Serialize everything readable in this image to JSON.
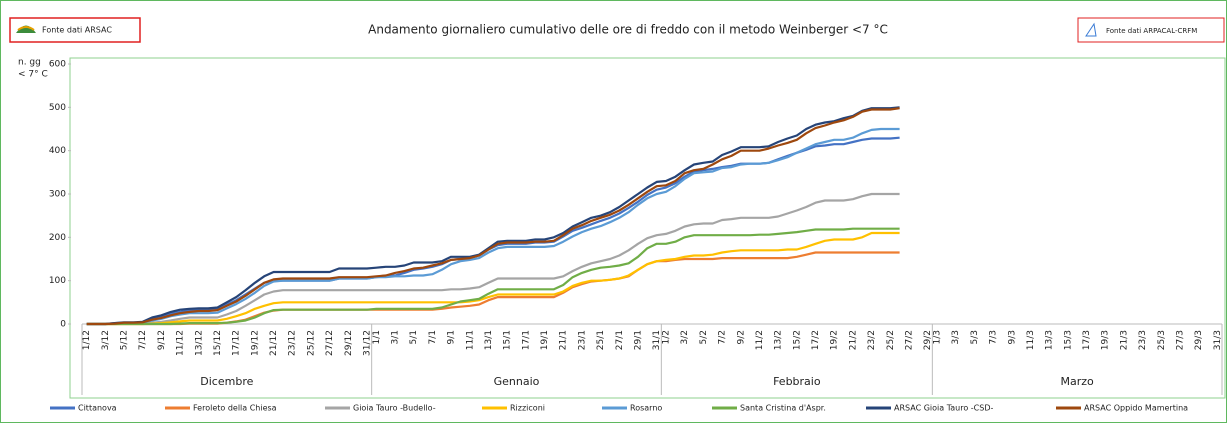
{
  "header": {
    "left_source": "Fonte dati ARSAC",
    "right_source": "Fonte dati ARPACAL-CRFM"
  },
  "chart_data": {
    "type": "line",
    "title": "Andamento giornaliero cumulativo delle ore di freddo con il metodo Weinberger <7 °C",
    "y_label": [
      "n. gg",
      "< 7° C"
    ],
    "ylim": [
      0,
      600
    ],
    "yticks": [
      0,
      100,
      200,
      300,
      400,
      500,
      600
    ],
    "grid": false,
    "groups": [
      "Dicembre",
      "Gennaio",
      "Febbraio",
      "Marzo"
    ],
    "categories": [
      "1/12",
      null,
      "3/12",
      null,
      "5/12",
      null,
      "7/12",
      null,
      "9/12",
      null,
      "11/12",
      null,
      "13/12",
      null,
      "15/12",
      null,
      "17/12",
      null,
      "19/12",
      null,
      "21/12",
      null,
      "23/12",
      null,
      "25/12",
      null,
      "27/12",
      null,
      "29/12",
      null,
      "31/12",
      "1/1",
      null,
      "3/1",
      null,
      "5/1",
      null,
      "7/1",
      null,
      "9/1",
      null,
      "11/1",
      null,
      "13/1",
      null,
      "15/1",
      null,
      "17/1",
      null,
      "19/1",
      null,
      "21/1",
      null,
      "23/1",
      null,
      "25/1",
      null,
      "27/1",
      null,
      "29/1",
      null,
      "31/1",
      "1/2",
      null,
      "3/2",
      null,
      "5/2",
      null,
      "7/2",
      null,
      "9/2",
      null,
      "11/2",
      null,
      "13/2",
      null,
      "15/2",
      null,
      "17/2",
      null,
      "19/2",
      null,
      "21/2",
      null,
      "23/2",
      null,
      "25/2",
      null,
      "27/2",
      null,
      "29/2",
      "1/3",
      null,
      "3/3",
      null,
      "5/3",
      null,
      "7/3",
      null,
      "9/3",
      null,
      "11/3",
      null,
      "13/3",
      null,
      "15/3",
      null,
      "17/3",
      null,
      "19/3",
      null,
      "21/3",
      null,
      "23/3",
      null,
      "25/3",
      null,
      "27/3",
      null,
      "29/3",
      null,
      "31/3"
    ],
    "series": [
      {
        "name": "Cittanova",
        "color": "#4472c4",
        "values": [
          0,
          0,
          0,
          2,
          3,
          3,
          4,
          12,
          18,
          24,
          28,
          32,
          33,
          33,
          34,
          45,
          55,
          68,
          82,
          95,
          100,
          100,
          100,
          100,
          100,
          100,
          100,
          105,
          105,
          105,
          105,
          108,
          110,
          112,
          118,
          125,
          128,
          132,
          138,
          148,
          150,
          152,
          158,
          172,
          182,
          185,
          185,
          185,
          188,
          188,
          190,
          202,
          215,
          222,
          230,
          238,
          245,
          255,
          268,
          282,
          298,
          310,
          315,
          325,
          340,
          352,
          355,
          358,
          362,
          365,
          370,
          370,
          370,
          372,
          380,
          388,
          395,
          402,
          410,
          412,
          415,
          415,
          420,
          425,
          428,
          428,
          428,
          430,
          null,
          null,
          null,
          null,
          null,
          null,
          null,
          null,
          null,
          null,
          null,
          null,
          null,
          null,
          null,
          null,
          null,
          null,
          null,
          null,
          null,
          null,
          null,
          null,
          null,
          null,
          null,
          null,
          null,
          null,
          null,
          null,
          null,
          null
        ]
      },
      {
        "name": "Feroleto della Chiesa",
        "color": "#ed7d31",
        "values": [
          0,
          0,
          0,
          0,
          0,
          0,
          0,
          0,
          0,
          0,
          0,
          1,
          1,
          1,
          1,
          3,
          6,
          10,
          18,
          26,
          31,
          33,
          33,
          33,
          33,
          33,
          33,
          33,
          33,
          33,
          33,
          33,
          33,
          33,
          33,
          33,
          33,
          33,
          35,
          38,
          40,
          42,
          45,
          55,
          62,
          62,
          62,
          62,
          62,
          62,
          62,
          72,
          85,
          92,
          98,
          100,
          102,
          105,
          110,
          125,
          138,
          145,
          145,
          148,
          150,
          150,
          150,
          150,
          152,
          152,
          152,
          152,
          152,
          152,
          152,
          152,
          155,
          160,
          165,
          165,
          165,
          165,
          165,
          165,
          165,
          165,
          165,
          165,
          null,
          null,
          null,
          null,
          null,
          null,
          null,
          null,
          null,
          null,
          null,
          null,
          null,
          null,
          null,
          null,
          null,
          null,
          null,
          null,
          null,
          null,
          null,
          null,
          null,
          null,
          null,
          null,
          null,
          null,
          null,
          null,
          null,
          null
        ]
      },
      {
        "name": "Gioia Tauro -Budello-",
        "color": "#a5a5a5",
        "values": [
          0,
          0,
          0,
          0,
          1,
          1,
          1,
          3,
          5,
          8,
          12,
          15,
          15,
          15,
          15,
          22,
          30,
          42,
          55,
          68,
          75,
          78,
          78,
          78,
          78,
          78,
          78,
          78,
          78,
          78,
          78,
          78,
          78,
          78,
          78,
          78,
          78,
          78,
          78,
          80,
          80,
          82,
          85,
          95,
          105,
          105,
          105,
          105,
          105,
          105,
          105,
          110,
          122,
          132,
          140,
          145,
          150,
          158,
          170,
          185,
          198,
          205,
          208,
          215,
          225,
          230,
          232,
          232,
          240,
          242,
          245,
          245,
          245,
          245,
          248,
          255,
          262,
          270,
          280,
          285,
          285,
          285,
          288,
          295,
          300,
          300,
          300,
          300,
          null,
          null,
          null,
          null,
          null,
          null,
          null,
          null,
          null,
          null,
          null,
          null,
          null,
          null,
          null,
          null,
          null,
          null,
          null,
          null,
          null,
          null,
          null,
          null,
          null,
          null,
          null,
          null,
          null,
          null,
          null,
          null,
          null,
          null
        ]
      },
      {
        "name": "Rizziconi",
        "color": "#ffc000",
        "values": [
          0,
          0,
          0,
          0,
          0,
          0,
          0,
          1,
          2,
          4,
          6,
          8,
          8,
          8,
          8,
          12,
          18,
          25,
          35,
          42,
          48,
          50,
          50,
          50,
          50,
          50,
          50,
          50,
          50,
          50,
          50,
          50,
          50,
          50,
          50,
          50,
          50,
          50,
          50,
          50,
          50,
          52,
          55,
          62,
          68,
          68,
          68,
          68,
          68,
          68,
          68,
          75,
          88,
          95,
          100,
          100,
          102,
          105,
          112,
          125,
          138,
          145,
          148,
          150,
          155,
          158,
          158,
          160,
          165,
          168,
          170,
          170,
          170,
          170,
          170,
          172,
          172,
          178,
          185,
          192,
          195,
          195,
          195,
          200,
          210,
          210,
          210,
          210,
          null,
          null,
          null,
          null,
          null,
          null,
          null,
          null,
          null,
          null,
          null,
          null,
          null,
          null,
          null,
          null,
          null,
          null,
          null,
          null,
          null,
          null,
          null,
          null,
          null,
          null,
          null,
          null,
          null,
          null,
          null,
          null,
          null,
          null
        ]
      },
      {
        "name": "Rosarno",
        "color": "#5b9bd5",
        "values": [
          0,
          0,
          0,
          1,
          2,
          2,
          3,
          8,
          12,
          18,
          22,
          25,
          25,
          25,
          26,
          36,
          46,
          58,
          72,
          88,
          98,
          100,
          100,
          100,
          100,
          100,
          100,
          105,
          105,
          105,
          105,
          108,
          108,
          110,
          110,
          112,
          112,
          115,
          125,
          138,
          145,
          148,
          152,
          165,
          175,
          178,
          178,
          178,
          178,
          178,
          180,
          190,
          202,
          212,
          220,
          226,
          235,
          245,
          258,
          275,
          290,
          300,
          305,
          318,
          335,
          348,
          350,
          352,
          360,
          362,
          368,
          370,
          370,
          372,
          378,
          385,
          395,
          405,
          415,
          420,
          425,
          425,
          430,
          440,
          448,
          450,
          450,
          450,
          null,
          null,
          null,
          null,
          null,
          null,
          null,
          null,
          null,
          null,
          null,
          null,
          null,
          null,
          null,
          null,
          null,
          null,
          null,
          null,
          null,
          null,
          null,
          null,
          null,
          null,
          null,
          null,
          null,
          null,
          null,
          null,
          null,
          null
        ]
      },
      {
        "name": "Santa Cristina d'Aspr.",
        "color": "#70ad47",
        "values": [
          0,
          0,
          0,
          0,
          0,
          0,
          0,
          0,
          0,
          0,
          1,
          2,
          2,
          2,
          2,
          3,
          5,
          8,
          15,
          25,
          32,
          33,
          33,
          33,
          33,
          33,
          33,
          33,
          33,
          33,
          33,
          35,
          35,
          35,
          35,
          35,
          35,
          35,
          38,
          45,
          52,
          55,
          58,
          70,
          80,
          80,
          80,
          80,
          80,
          80,
          80,
          90,
          108,
          118,
          125,
          130,
          132,
          135,
          140,
          155,
          175,
          185,
          185,
          190,
          200,
          205,
          205,
          205,
          205,
          205,
          205,
          205,
          206,
          206,
          208,
          210,
          212,
          215,
          218,
          218,
          218,
          218,
          220,
          220,
          220,
          220,
          220,
          220,
          null,
          null,
          null,
          null,
          null,
          null,
          null,
          null,
          null,
          null,
          null,
          null,
          null,
          null,
          null,
          null,
          null,
          null,
          null,
          null,
          null,
          null,
          null,
          null,
          null,
          null,
          null,
          null,
          null,
          null,
          null,
          null,
          null,
          null
        ]
      },
      {
        "name": "ARSAC Gioia Tauro -CSD-",
        "color": "#264478",
        "values": [
          0,
          0,
          0,
          2,
          4,
          4,
          5,
          15,
          20,
          28,
          33,
          35,
          36,
          36,
          38,
          50,
          62,
          78,
          95,
          110,
          120,
          120,
          120,
          120,
          120,
          120,
          120,
          128,
          128,
          128,
          128,
          130,
          132,
          132,
          135,
          142,
          142,
          142,
          145,
          155,
          155,
          155,
          160,
          175,
          190,
          192,
          192,
          192,
          195,
          195,
          200,
          210,
          225,
          235,
          245,
          250,
          258,
          270,
          285,
          300,
          315,
          328,
          330,
          340,
          355,
          368,
          372,
          375,
          390,
          398,
          408,
          408,
          408,
          410,
          420,
          428,
          435,
          450,
          460,
          465,
          468,
          475,
          480,
          492,
          498,
          498,
          498,
          500,
          null,
          null,
          null,
          null,
          null,
          null,
          null,
          null,
          null,
          null,
          null,
          null,
          null,
          null,
          null,
          null,
          null,
          null,
          null,
          null,
          null,
          null,
          null,
          null,
          null,
          null,
          null,
          null,
          null,
          null,
          null,
          null,
          null,
          null
        ]
      },
      {
        "name": "ARSAC Oppido Mamertina",
        "color": "#9e480e",
        "values": [
          0,
          0,
          0,
          1,
          3,
          3,
          4,
          10,
          14,
          20,
          25,
          28,
          30,
          30,
          32,
          42,
          52,
          65,
          80,
          95,
          103,
          105,
          105,
          105,
          105,
          105,
          105,
          108,
          108,
          108,
          108,
          110,
          112,
          118,
          122,
          128,
          130,
          135,
          140,
          148,
          150,
          152,
          158,
          172,
          185,
          188,
          188,
          188,
          190,
          190,
          192,
          205,
          220,
          228,
          238,
          245,
          252,
          262,
          275,
          290,
          305,
          318,
          320,
          330,
          348,
          355,
          358,
          368,
          380,
          388,
          400,
          400,
          400,
          405,
          412,
          418,
          425,
          440,
          452,
          458,
          465,
          470,
          478,
          490,
          495,
          495,
          495,
          498,
          null,
          null,
          null,
          null,
          null,
          null,
          null,
          null,
          null,
          null,
          null,
          null,
          null,
          null,
          null,
          null,
          null,
          null,
          null,
          null,
          null,
          null,
          null,
          null,
          null,
          null,
          null,
          null,
          null,
          null,
          null,
          null,
          null,
          null
        ]
      }
    ]
  }
}
